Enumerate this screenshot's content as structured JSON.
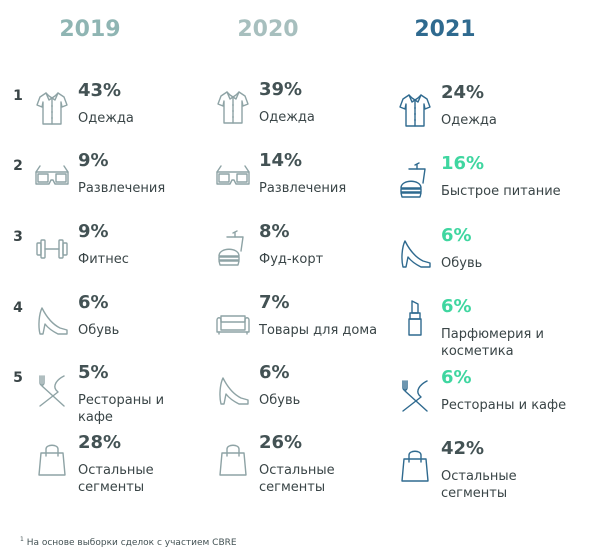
{
  "chart_data": {
    "type": "table",
    "columns": [
      {
        "year": "2019",
        "color": "#8fb5b3",
        "items": [
          {
            "rank": "1",
            "value": 43,
            "value_text": "43%",
            "label": "Одежда",
            "icon": "shirt-icon"
          },
          {
            "rank": "2",
            "value": 9,
            "value_text": "9%",
            "label": "Развлечения",
            "icon": "3d-glasses-icon"
          },
          {
            "rank": "3",
            "value": 9,
            "value_text": "9%",
            "label": "Фитнес",
            "icon": "dumbbell-icon"
          },
          {
            "rank": "4",
            "value": 6,
            "value_text": "6%",
            "label": "Обувь",
            "icon": "high-heel-icon"
          },
          {
            "rank": "5",
            "value": 5,
            "value_text": "5%",
            "label": "Рестораны и кафе",
            "icon": "fork-knife-icon"
          },
          {
            "rank": "",
            "value": 28,
            "value_text": "28%",
            "label": "Остальные сегменты",
            "icon": "shopping-bag-icon"
          }
        ]
      },
      {
        "year": "2020",
        "color": "#a7bfbe",
        "items": [
          {
            "value": 39,
            "value_text": "39%",
            "label": "Одежда",
            "icon": "shirt-icon"
          },
          {
            "value": 14,
            "value_text": "14%",
            "label": "Развлечения",
            "icon": "3d-glasses-icon"
          },
          {
            "value": 8,
            "value_text": "8%",
            "label": "Фуд-корт",
            "icon": "fast-food-icon"
          },
          {
            "value": 7,
            "value_text": "7%",
            "label": "Товары для дома",
            "icon": "sofa-icon"
          },
          {
            "value": 6,
            "value_text": "6%",
            "label": "Обувь",
            "icon": "high-heel-icon"
          },
          {
            "value": 26,
            "value_text": "26%",
            "label": "Остальные сегменты",
            "icon": "shopping-bag-icon"
          }
        ]
      },
      {
        "year": "2021",
        "color": "#2f6a8f",
        "items": [
          {
            "value": 24,
            "value_text": "24%",
            "label": "Одежда",
            "icon": "shirt-icon",
            "highlight": false
          },
          {
            "value": 16,
            "value_text": "16%",
            "label": "Быстрое питание",
            "icon": "fast-food-icon",
            "highlight": true
          },
          {
            "value": 6,
            "value_text": "6%",
            "label": "Обувь",
            "icon": "high-heel-icon",
            "highlight": true
          },
          {
            "value": 6,
            "value_text": "6%",
            "label": "Парфюмерия и косметика",
            "icon": "lipstick-icon",
            "highlight": true
          },
          {
            "value": 6,
            "value_text": "6%",
            "label": "Рестораны и кафе",
            "icon": "fork-knife-icon",
            "highlight": true
          },
          {
            "value": 42,
            "value_text": "42%",
            "label": "Остальные сегменты",
            "icon": "shopping-bag-icon",
            "highlight": false
          }
        ]
      }
    ]
  },
  "colors": {
    "text": "#435254",
    "highlight": "#3fd6a0",
    "icon_muted": "#8ea3a5",
    "icon_2021": "#2f6a8f"
  },
  "footnote": {
    "marker": "1",
    "text": "На основе выборки сделок с участием CBRE"
  }
}
